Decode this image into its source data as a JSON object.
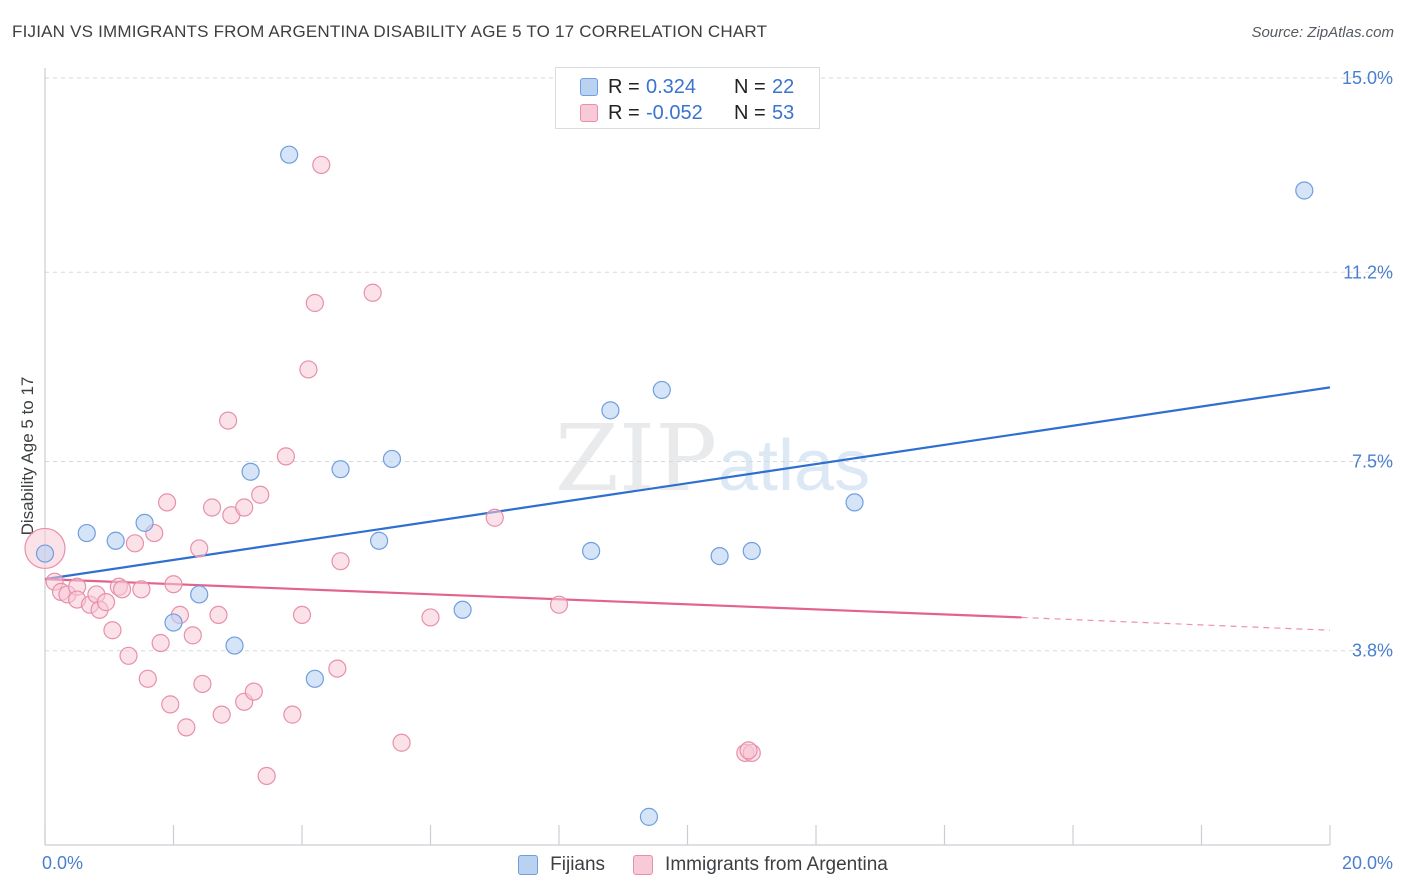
{
  "header": {
    "title": "FIJIAN VS IMMIGRANTS FROM ARGENTINA DISABILITY AGE 5 TO 17 CORRELATION CHART",
    "source": "Source: ZipAtlas.com"
  },
  "colors": {
    "blue_fill": "#b9d2f2",
    "blue_stroke": "#6f9fde",
    "blue_line": "#2e6fd0",
    "pink_fill": "#f8c9d6",
    "pink_stroke": "#e890aa",
    "pink_line": "#e3638d",
    "tick_label": "#4a7fd0",
    "grid": "#d5d9de"
  },
  "legend": {
    "rows": [
      {
        "r_label": "R =",
        "r_value": "0.324",
        "n_label": "N =",
        "n_value": "22",
        "swatch": "blue"
      },
      {
        "r_label": "R =",
        "r_value": "-0.052",
        "n_label": "N =",
        "n_value": "53",
        "swatch": "pink"
      }
    ]
  },
  "watermark": {
    "part1": "ZIP",
    "part2": "atlas"
  },
  "chart_data": {
    "type": "scatter",
    "title": "FIJIAN VS IMMIGRANTS FROM ARGENTINA DISABILITY AGE 5 TO 17 CORRELATION CHART",
    "xlabel": "",
    "ylabel": "Disability Age 5 to 17",
    "xlim": [
      0,
      20
    ],
    "ylim": [
      0,
      15.0
    ],
    "x_tick_labels": [
      "0.0%",
      "20.0%"
    ],
    "y_ticks": [
      3.8,
      7.5,
      11.2,
      15.0
    ],
    "y_tick_labels": [
      "3.8%",
      "7.5%",
      "11.2%",
      "15.0%"
    ],
    "grid": true,
    "legend_position": "top-center",
    "series": [
      {
        "name": "Fijians",
        "color": "blue",
        "points": [
          [
            0.0,
            5.7
          ],
          [
            0.65,
            6.1
          ],
          [
            1.1,
            5.95
          ],
          [
            1.55,
            6.3
          ],
          [
            2.0,
            4.35
          ],
          [
            2.4,
            4.9
          ],
          [
            2.95,
            3.9
          ],
          [
            3.2,
            7.3
          ],
          [
            3.8,
            13.5
          ],
          [
            4.2,
            3.25
          ],
          [
            4.6,
            7.35
          ],
          [
            5.4,
            7.55
          ],
          [
            5.2,
            5.95
          ],
          [
            6.5,
            4.6
          ],
          [
            8.5,
            5.75
          ],
          [
            8.8,
            8.5
          ],
          [
            9.6,
            8.9
          ],
          [
            10.5,
            5.65
          ],
          [
            11.0,
            5.75
          ],
          [
            12.6,
            6.7
          ],
          [
            19.6,
            12.8
          ],
          [
            9.4,
            0.55
          ]
        ],
        "trend": {
          "x": [
            0,
            20
          ],
          "y": [
            5.2,
            8.95
          ]
        }
      },
      {
        "name": "Immigrants from Argentina",
        "color": "pink",
        "points": [
          [
            0.0,
            5.8
          ],
          [
            0.15,
            5.15
          ],
          [
            0.25,
            4.95
          ],
          [
            0.35,
            4.9
          ],
          [
            0.5,
            5.05
          ],
          [
            0.5,
            4.8
          ],
          [
            0.7,
            4.7
          ],
          [
            0.8,
            4.9
          ],
          [
            0.85,
            4.6
          ],
          [
            0.95,
            4.75
          ],
          [
            1.05,
            4.2
          ],
          [
            1.15,
            5.05
          ],
          [
            1.2,
            5.0
          ],
          [
            1.3,
            3.7
          ],
          [
            1.4,
            5.9
          ],
          [
            1.5,
            5.0
          ],
          [
            1.6,
            3.25
          ],
          [
            1.7,
            6.1
          ],
          [
            1.8,
            3.95
          ],
          [
            1.9,
            6.7
          ],
          [
            1.95,
            2.75
          ],
          [
            2.0,
            5.1
          ],
          [
            2.1,
            4.5
          ],
          [
            2.2,
            2.3
          ],
          [
            2.3,
            4.1
          ],
          [
            2.4,
            5.8
          ],
          [
            2.45,
            3.15
          ],
          [
            2.6,
            6.6
          ],
          [
            2.7,
            4.5
          ],
          [
            2.75,
            2.55
          ],
          [
            2.85,
            8.3
          ],
          [
            2.9,
            6.45
          ],
          [
            3.1,
            6.6
          ],
          [
            3.1,
            2.8
          ],
          [
            3.25,
            3.0
          ],
          [
            3.35,
            6.85
          ],
          [
            3.45,
            1.35
          ],
          [
            3.75,
            7.6
          ],
          [
            3.85,
            2.55
          ],
          [
            4.0,
            4.5
          ],
          [
            4.1,
            9.3
          ],
          [
            4.2,
            10.6
          ],
          [
            4.3,
            13.3
          ],
          [
            4.55,
            3.45
          ],
          [
            4.6,
            5.55
          ],
          [
            5.1,
            10.8
          ],
          [
            5.55,
            2.0
          ],
          [
            6.0,
            4.45
          ],
          [
            7.0,
            6.4
          ],
          [
            8.0,
            4.7
          ],
          [
            10.9,
            1.8
          ],
          [
            11.0,
            1.8
          ],
          [
            10.95,
            1.85
          ]
        ],
        "trend": {
          "x": [
            0,
            15.2
          ],
          "y": [
            5.2,
            4.45
          ]
        },
        "trend_extension": {
          "x": [
            15.2,
            20
          ],
          "y": [
            4.45,
            4.2
          ]
        }
      }
    ]
  },
  "bottom_legend": {
    "items": [
      {
        "label": "Fijians",
        "swatch": "blue"
      },
      {
        "label": "Immigrants from Argentina",
        "swatch": "pink"
      }
    ]
  }
}
